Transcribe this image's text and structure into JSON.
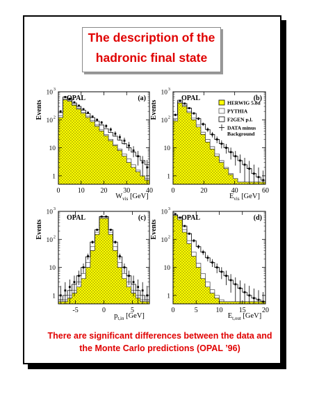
{
  "title": {
    "line1": "The description of the",
    "line2": "hadronic final state"
  },
  "caption": {
    "line1": "There are significant differences between the data and",
    "line2": "the Monte Carlo predictions (OPAL ’96)"
  },
  "colors": {
    "herwig_fill": "#ffff00",
    "caption_red": "#e00000",
    "frame": "#000000"
  },
  "legend": {
    "herwig": "HERWIG 5.8d",
    "pythia": "PYTHIA",
    "f2gen": "F2GEN p.l.",
    "data_line1": "DATA minus",
    "data_line2": "Background"
  },
  "chart_data": [
    {
      "type": "bar",
      "panel": "(a)",
      "experiment": "OPAL",
      "ylabel": "Events",
      "xlabel": "W",
      "xlabel_sub": "vis",
      "xlabel_unit": "[GeV]",
      "log_y": true,
      "xlim": [
        0,
        40
      ],
      "ylim": [
        0.5,
        1000
      ],
      "xticks": [
        "0",
        "10",
        "20",
        "30",
        "40"
      ],
      "xtick_values": [
        0,
        10,
        20,
        30,
        40
      ],
      "bin_edges": [
        0,
        2,
        4,
        6,
        8,
        10,
        12,
        14,
        16,
        18,
        20,
        22,
        24,
        26,
        28,
        30,
        32,
        34,
        36,
        38,
        40
      ],
      "series": [
        {
          "name": "HERWIG",
          "values": [
            120,
            520,
            460,
            330,
            240,
            170,
            120,
            85,
            58,
            40,
            27,
            18,
            12,
            8,
            5,
            3,
            2,
            1.4,
            1,
            0.7
          ]
        },
        {
          "name": "PYTHIA",
          "values": [
            140,
            560,
            500,
            360,
            260,
            185,
            135,
            95,
            65,
            45,
            30,
            20,
            13,
            9,
            6,
            4,
            2.5,
            1.6,
            1,
            0.8
          ]
        },
        {
          "name": "F2GEN",
          "values": [
            180,
            650,
            560,
            400,
            300,
            220,
            165,
            120,
            90,
            65,
            48,
            35,
            26,
            19,
            14,
            10,
            7,
            5,
            3.5,
            2.5
          ]
        },
        {
          "name": "DATA",
          "values": [
            200,
            650,
            560,
            420,
            320,
            240,
            180,
            130,
            100,
            80,
            60,
            45,
            32,
            24,
            18,
            12,
            8,
            5,
            3,
            2
          ]
        }
      ]
    },
    {
      "type": "bar",
      "panel": "(b)",
      "experiment": "OPAL",
      "ylabel": "Events",
      "xlabel": "E",
      "xlabel_sub": "vis",
      "xlabel_unit": "[GeV]",
      "log_y": true,
      "xlim": [
        0,
        60
      ],
      "ylim": [
        0.5,
        1000
      ],
      "xticks": [
        "0",
        "20",
        "40",
        "60"
      ],
      "xtick_values": [
        0,
        20,
        40,
        60
      ],
      "bin_edges": [
        0,
        3,
        6,
        9,
        12,
        15,
        18,
        21,
        24,
        27,
        30,
        33,
        36,
        39,
        42,
        45,
        48,
        51,
        54,
        57,
        60
      ],
      "series": [
        {
          "name": "HERWIG",
          "values": [
            90,
            400,
            300,
            180,
            100,
            55,
            30,
            16,
            9,
            5,
            3,
            1.8,
            1.1,
            0.8,
            0.6,
            0.6,
            0.6,
            0.6,
            0.6,
            0.6
          ]
        },
        {
          "name": "PYTHIA",
          "values": [
            110,
            440,
            330,
            200,
            115,
            65,
            36,
            20,
            11,
            6,
            3.5,
            2,
            1.2,
            0.8,
            0.6,
            0.6,
            0.6,
            0.6,
            0.6,
            0.6
          ]
        },
        {
          "name": "F2GEN",
          "values": [
            150,
            500,
            380,
            260,
            170,
            110,
            70,
            45,
            30,
            20,
            14,
            10,
            7,
            5,
            3.5,
            2.5,
            1.8,
            1.2,
            0.9,
            0.7
          ]
        },
        {
          "name": "DATA",
          "values": [
            150,
            480,
            380,
            260,
            170,
            110,
            70,
            45,
            30,
            20,
            14,
            10,
            7,
            5,
            3.5,
            2.5,
            1.8,
            1.2,
            0.9,
            0.7
          ]
        }
      ]
    },
    {
      "type": "bar",
      "panel": "(c)",
      "experiment": "OPAL",
      "ylabel": "Events",
      "xlabel": "p",
      "xlabel_sub": "t,in",
      "xlabel_unit": "[GeV]",
      "log_y": true,
      "xlim": [
        -8,
        8
      ],
      "ylim": [
        0.5,
        1000
      ],
      "xticks": [
        "-5",
        "0",
        "5"
      ],
      "xtick_values": [
        -5,
        0,
        5
      ],
      "bin_edges": [
        -8,
        -7.2,
        -6.4,
        -5.6,
        -4.8,
        -4,
        -3.2,
        -2.4,
        -1.6,
        -0.8,
        0,
        0.8,
        1.6,
        2.4,
        3.2,
        4,
        4.8,
        5.6,
        6.4,
        7.2,
        8
      ],
      "series": [
        {
          "name": "HERWIG",
          "values": [
            0.6,
            0.6,
            0.8,
            1.2,
            2,
            4,
            10,
            40,
            150,
            560,
            560,
            150,
            40,
            10,
            4,
            2,
            1.2,
            0.8,
            0.6,
            0.6
          ]
        },
        {
          "name": "PYTHIA",
          "values": [
            0.6,
            0.7,
            1,
            1.5,
            3,
            6,
            15,
            55,
            180,
            620,
            620,
            180,
            55,
            15,
            6,
            3,
            1.5,
            1,
            0.7,
            0.6
          ]
        },
        {
          "name": "F2GEN",
          "values": [
            0.7,
            1,
            1.5,
            2.5,
            5,
            10,
            24,
            80,
            220,
            650,
            650,
            220,
            80,
            24,
            10,
            5,
            2.5,
            1.5,
            1,
            0.7
          ]
        },
        {
          "name": "DATA",
          "values": [
            1,
            1.5,
            2,
            3,
            5,
            10,
            25,
            80,
            220,
            650,
            650,
            220,
            80,
            25,
            10,
            5,
            3,
            2,
            1.5,
            1
          ]
        }
      ]
    },
    {
      "type": "bar",
      "panel": "(d)",
      "experiment": "OPAL",
      "ylabel": "Events",
      "xlabel": "E",
      "xlabel_sub": "t,out",
      "xlabel_unit": "[GeV]",
      "log_y": true,
      "xlim": [
        0,
        20
      ],
      "ylim": [
        0.5,
        1000
      ],
      "xticks": [
        "0",
        "5",
        "10",
        "15",
        "20"
      ],
      "xtick_values": [
        0,
        5,
        10,
        15,
        20
      ],
      "bin_edges": [
        0,
        1,
        2,
        3,
        4,
        5,
        6,
        7,
        8,
        9,
        10,
        11,
        12,
        13,
        14,
        15,
        16,
        17,
        18,
        19,
        20
      ],
      "series": [
        {
          "name": "HERWIG",
          "values": [
            700,
            500,
            180,
            70,
            25,
            10,
            4,
            2,
            1.2,
            0.8,
            0.6,
            0.6,
            0.6,
            0.6,
            0.6,
            0.6,
            0.6,
            0.6,
            0.6,
            0.6
          ]
        },
        {
          "name": "PYTHIA",
          "values": [
            750,
            560,
            220,
            90,
            35,
            14,
            6,
            3,
            1.6,
            1,
            0.7,
            0.6,
            0.6,
            0.6,
            0.6,
            0.6,
            0.6,
            0.6,
            0.6,
            0.6
          ]
        },
        {
          "name": "F2GEN",
          "values": [
            750,
            620,
            300,
            160,
            90,
            55,
            35,
            22,
            15,
            10,
            7,
            5,
            3.5,
            2.5,
            1.8,
            1.3,
            1,
            0.8,
            0.7,
            0.6
          ]
        },
        {
          "name": "DATA",
          "values": [
            800,
            600,
            300,
            160,
            90,
            55,
            35,
            22,
            15,
            10,
            7,
            5,
            3.5,
            2.5,
            1.8,
            1.3,
            1,
            0.8,
            0.7,
            0.6
          ]
        }
      ]
    }
  ]
}
